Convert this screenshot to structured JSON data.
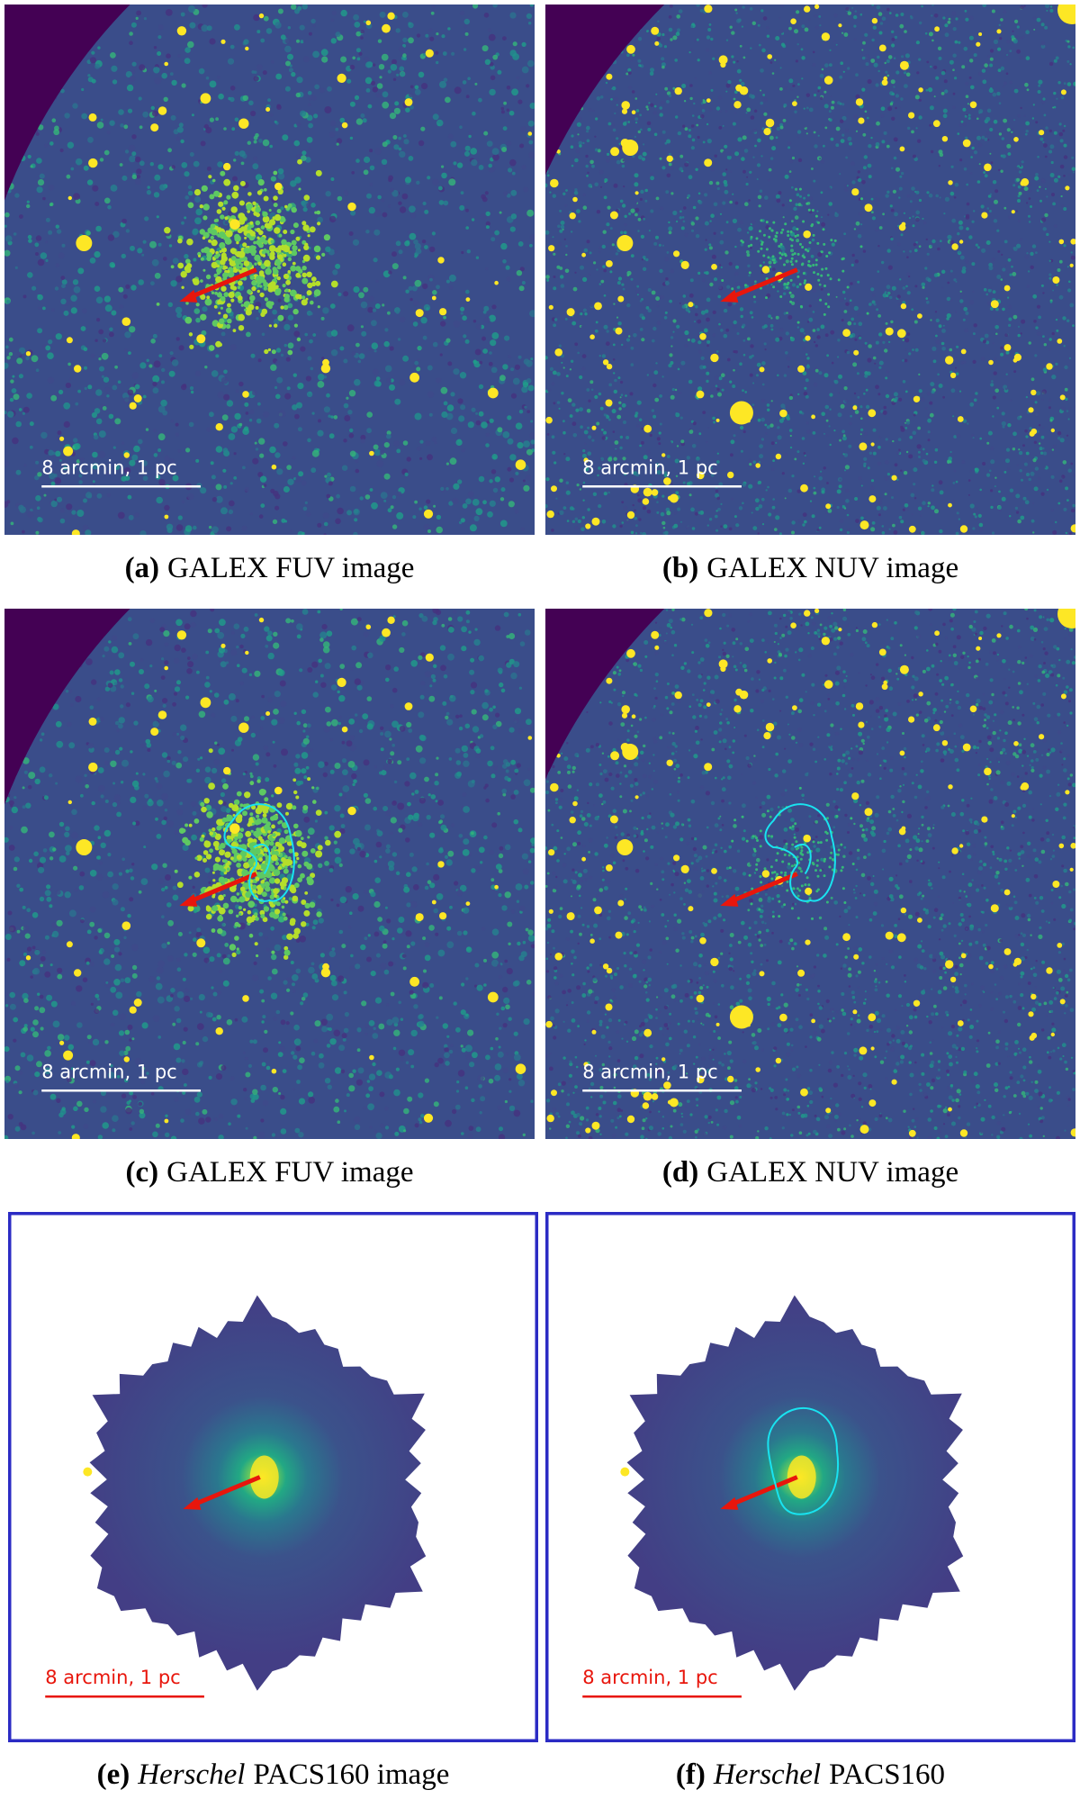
{
  "panels": [
    {
      "kind": "GALEX",
      "band": "FUV",
      "contour": false,
      "label": "(a)",
      "caption": "GALEX FUV image",
      "scale_label": "8 arcmin, 1 pc"
    },
    {
      "kind": "GALEX",
      "band": "NUV",
      "contour": false,
      "label": "(b)",
      "caption": "GALEX NUV image",
      "scale_label": "8 arcmin, 1 pc"
    },
    {
      "kind": "GALEX",
      "band": "FUV",
      "contour": true,
      "label": "(c)",
      "caption": "GALEX FUV image",
      "scale_label": "8 arcmin, 1 pc"
    },
    {
      "kind": "GALEX",
      "band": "NUV",
      "contour": true,
      "label": "(d)",
      "caption": "GALEX NUV image",
      "scale_label": "8 arcmin, 1 pc"
    },
    {
      "kind": "Herschel",
      "contour": false,
      "label": "(e)",
      "caption_italic": "Herschel",
      "caption": "PACS160 image",
      "scale_label": "8 arcmin, 1 pc"
    },
    {
      "kind": "Herschel",
      "contour": true,
      "label": "(f)",
      "caption_italic": "Herschel",
      "caption": "PACS160",
      "scale_label": "8 arcmin, 1 pc"
    }
  ]
}
